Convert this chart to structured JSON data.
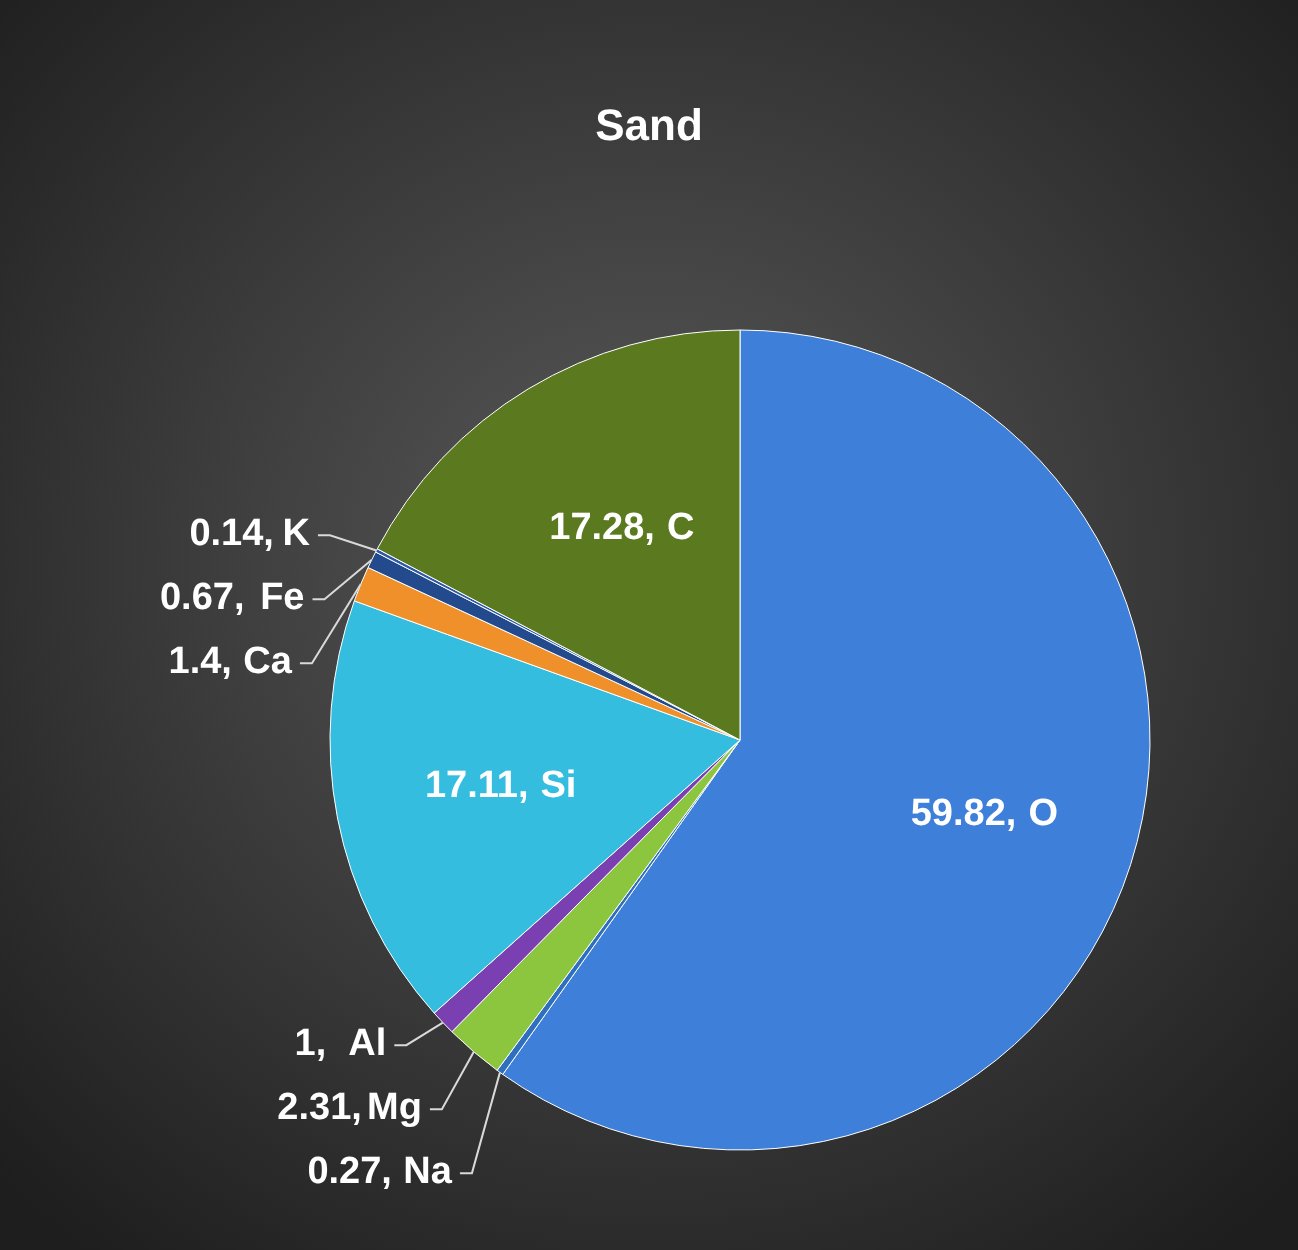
{
  "chart_data": {
    "type": "pie",
    "title": "Sand",
    "categories": [
      "O",
      "Na",
      "Mg",
      "Al",
      "Si",
      "Ca",
      "Fe",
      "K",
      "C"
    ],
    "values": [
      59.82,
      0.27,
      2.31,
      1,
      17.11,
      1.4,
      0.67,
      0.14,
      17.28
    ],
    "colors": [
      "#3d7fd9",
      "#2f6fbf",
      "#8cc63f",
      "#7a3fb0",
      "#35bde0",
      "#f0902a",
      "#234a8c",
      "#2a5aa8",
      "#5b7a1f"
    ],
    "value_labels": [
      "59.82,",
      "0.27,",
      "2.31,",
      "1,",
      "17.11,",
      "1.4,",
      "0.67,",
      "0.14,",
      "17.28,"
    ]
  }
}
